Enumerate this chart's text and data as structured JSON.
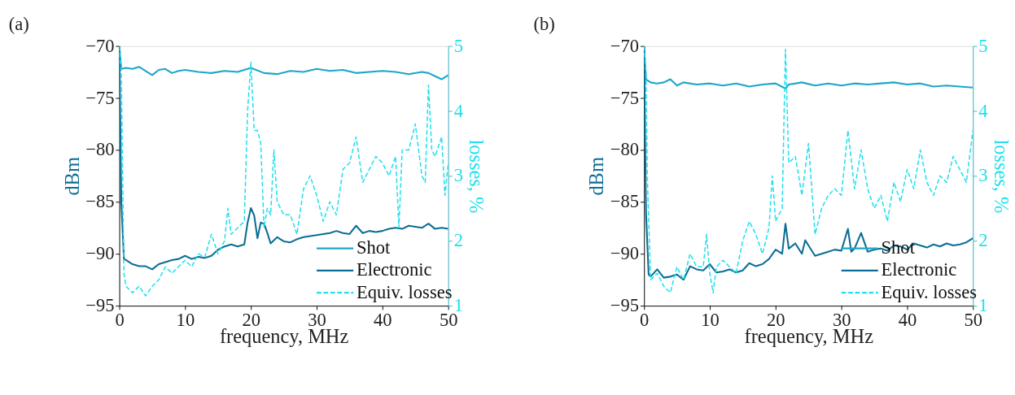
{
  "chart_data": [
    {
      "type": "line",
      "title": "(a)",
      "xlabel": "frequency, MHz",
      "ylabel": "dBm",
      "y2label": "losses, %",
      "xlim": [
        0,
        50
      ],
      "xticks": [
        0,
        10,
        20,
        30,
        40,
        50
      ],
      "ylim": [
        -95,
        -70
      ],
      "yticks": [
        -95,
        -90,
        -85,
        -80,
        -75,
        -70
      ],
      "y2lim": [
        1,
        5
      ],
      "y2ticks": [
        1,
        2,
        3,
        4,
        5
      ],
      "legend": "bottom right",
      "grid": false,
      "series": [
        {
          "name": "Shot",
          "color": "#1aa7c9",
          "line_style": "solid",
          "x": [
            0,
            0.3,
            1,
            2,
            3,
            4,
            5,
            6,
            7,
            8,
            9,
            10,
            12,
            14,
            16,
            18,
            20,
            22,
            24,
            26,
            28,
            30,
            32,
            34,
            36,
            38,
            40,
            42,
            44,
            46,
            47,
            48,
            49,
            50
          ],
          "values": [
            -70,
            -72.2,
            -72.1,
            -72.2,
            -72.0,
            -72.4,
            -72.8,
            -72.3,
            -72.2,
            -72.6,
            -72.4,
            -72.3,
            -72.5,
            -72.6,
            -72.4,
            -72.5,
            -72.1,
            -72.6,
            -72.7,
            -72.4,
            -72.5,
            -72.2,
            -72.4,
            -72.3,
            -72.6,
            -72.5,
            -72.4,
            -72.5,
            -72.7,
            -72.5,
            -72.6,
            -72.9,
            -73.2,
            -72.8
          ]
        },
        {
          "name": "Electronic",
          "color": "#0b6e94",
          "line_style": "solid",
          "x": [
            0,
            0.3,
            0.7,
            1,
            2,
            3,
            4,
            5,
            6,
            7,
            8,
            9,
            10,
            11,
            12,
            13,
            14,
            15,
            16,
            17,
            18,
            19,
            19.5,
            20,
            20.5,
            21,
            21.5,
            22,
            22.5,
            23,
            24,
            25,
            26,
            27,
            28,
            29,
            30,
            31,
            32,
            33,
            34,
            35,
            36,
            37,
            38,
            39,
            40,
            41,
            42,
            43,
            44,
            45,
            46,
            47,
            48,
            49,
            50
          ],
          "values": [
            -70,
            -85,
            -90.5,
            -90.6,
            -91,
            -91.2,
            -91.2,
            -91.5,
            -91,
            -90.8,
            -90.6,
            -90.5,
            -90.2,
            -90.5,
            -90.3,
            -90.4,
            -90.2,
            -89.6,
            -89.3,
            -89.1,
            -89.3,
            -89.1,
            -87,
            -85.6,
            -86.3,
            -88.5,
            -87,
            -87.1,
            -88,
            -89,
            -88.4,
            -88.8,
            -88.9,
            -88.6,
            -88.4,
            -88.3,
            -88.2,
            -88.1,
            -88,
            -87.8,
            -88,
            -88.1,
            -87.3,
            -88,
            -87.8,
            -87.9,
            -87.8,
            -87.6,
            -87.5,
            -87.6,
            -87.3,
            -87.4,
            -87.5,
            -87.1,
            -87.6,
            -87.5,
            -87.6
          ]
        },
        {
          "name": "Equiv. losses",
          "color": "#1ee0ee",
          "line_style": "dashed",
          "axis": "y2",
          "x": [
            0,
            0.3,
            0.7,
            1,
            2,
            3,
            4,
            5,
            6,
            7,
            8,
            9,
            10,
            11,
            12,
            13,
            14,
            15,
            16,
            16.5,
            17,
            18,
            19,
            19.5,
            20,
            20.5,
            21,
            21.5,
            22,
            22.5,
            23,
            23.5,
            24,
            25,
            26,
            27,
            28,
            29,
            30,
            31,
            32,
            33,
            34,
            35,
            36,
            37,
            38,
            39,
            40,
            41,
            42,
            42.5,
            43,
            44,
            45,
            46,
            46.5,
            47,
            47.5,
            48,
            49,
            49.5,
            50
          ],
          "values": [
            5,
            4.6,
            1.5,
            1.3,
            1.2,
            1.3,
            1.15,
            1.3,
            1.4,
            1.6,
            1.5,
            1.6,
            1.7,
            1.6,
            1.8,
            1.75,
            2.1,
            1.8,
            2.0,
            2.5,
            2.1,
            2.2,
            2.3,
            4.0,
            4.75,
            3.7,
            3.7,
            3.5,
            2.2,
            2.5,
            2.4,
            3.4,
            2.6,
            2.4,
            2.4,
            2.1,
            2.8,
            3.0,
            2.7,
            2.3,
            2.6,
            2.4,
            3.1,
            3.2,
            3.6,
            2.9,
            3.1,
            3.3,
            3.2,
            3.0,
            3.3,
            2.2,
            3.4,
            3.4,
            3.8,
            3.0,
            2.9,
            4.4,
            3.4,
            3.3,
            3.6,
            2.7,
            3.2
          ]
        }
      ]
    },
    {
      "type": "line",
      "title": "(b)",
      "xlabel": "frequency, MHz",
      "ylabel": "dBm",
      "y2label": "losses, %",
      "xlim": [
        0,
        50
      ],
      "xticks": [
        0,
        10,
        20,
        30,
        40,
        50
      ],
      "ylim": [
        -95,
        -70
      ],
      "yticks": [
        -95,
        -90,
        -85,
        -80,
        -75,
        -70
      ],
      "y2lim": [
        1,
        5
      ],
      "y2ticks": [
        1,
        2,
        3,
        4,
        5
      ],
      "legend": "bottom right",
      "grid": false,
      "series": [
        {
          "name": "Shot",
          "color": "#1aa7c9",
          "line_style": "solid",
          "x": [
            0,
            0.3,
            1,
            2,
            3,
            4,
            5,
            6,
            8,
            10,
            12,
            14,
            16,
            18,
            20,
            21.5,
            22,
            24,
            26,
            28,
            30,
            32,
            34,
            36,
            38,
            40,
            42,
            44,
            46,
            48,
            50
          ],
          "values": [
            -70,
            -73.2,
            -73.5,
            -73.6,
            -73.5,
            -73.2,
            -73.8,
            -73.5,
            -73.7,
            -73.6,
            -73.8,
            -73.6,
            -73.9,
            -73.7,
            -73.6,
            -74.1,
            -73.7,
            -73.5,
            -73.8,
            -73.6,
            -73.8,
            -73.6,
            -73.7,
            -73.6,
            -73.5,
            -73.7,
            -73.6,
            -73.9,
            -73.8,
            -73.9,
            -74.0
          ]
        },
        {
          "name": "Electronic",
          "color": "#0b6e94",
          "line_style": "solid",
          "x": [
            0,
            0.3,
            0.7,
            1,
            2,
            3,
            4,
            5,
            6,
            7,
            8,
            9,
            10,
            11,
            12,
            13,
            14,
            15,
            16,
            17,
            18,
            19,
            20,
            21,
            21.5,
            22,
            23,
            24,
            24.5,
            25,
            26,
            27,
            28,
            29,
            30,
            31,
            31.5,
            32,
            33,
            34,
            35,
            36,
            37,
            38,
            39,
            40,
            41,
            42,
            43,
            44,
            45,
            46,
            47,
            48,
            49,
            50
          ],
          "values": [
            -70,
            -86,
            -92,
            -92.2,
            -91.5,
            -92.3,
            -92.2,
            -92,
            -92.5,
            -91.2,
            -91.5,
            -91.6,
            -91,
            -91.8,
            -91.7,
            -91.5,
            -91.8,
            -91.6,
            -90.9,
            -91.2,
            -91,
            -90.5,
            -89.6,
            -90,
            -87.1,
            -89.5,
            -89,
            -90,
            -88.7,
            -89.2,
            -90.2,
            -90,
            -89.8,
            -89.6,
            -89.7,
            -87.6,
            -89.8,
            -89.5,
            -88,
            -89.8,
            -89.6,
            -89.5,
            -89.7,
            -89.2,
            -89.3,
            -89.6,
            -89.0,
            -89.2,
            -89.4,
            -89.1,
            -89.3,
            -89.0,
            -89.2,
            -89.1,
            -88.9,
            -88.5
          ]
        },
        {
          "name": "Equiv. losses",
          "color": "#1ee0ee",
          "line_style": "dashed",
          "axis": "y2",
          "x": [
            0,
            0.3,
            0.5,
            1,
            2,
            3,
            4,
            5,
            6,
            7,
            8,
            9,
            9.5,
            10,
            10.5,
            11,
            12,
            13,
            14,
            15,
            16,
            17,
            18,
            19,
            19.5,
            20,
            21,
            21.5,
            22,
            23,
            24,
            25,
            26,
            27,
            28,
            29,
            30,
            31,
            32,
            33,
            34,
            35,
            36,
            37,
            38,
            39,
            40,
            41,
            42,
            43,
            44,
            45,
            46,
            47,
            48,
            49,
            50
          ],
          "values": [
            5,
            4.6,
            3.0,
            1.4,
            1.5,
            1.3,
            1.2,
            1.6,
            1.4,
            1.8,
            1.6,
            1.6,
            2.1,
            1.5,
            1.2,
            1.6,
            1.7,
            1.6,
            1.5,
            2.0,
            2.3,
            2.1,
            1.8,
            2.2,
            3.0,
            2.3,
            2.5,
            4.95,
            3.2,
            3.3,
            2.7,
            3.5,
            2.1,
            2.5,
            2.7,
            2.8,
            2.7,
            3.7,
            2.8,
            3.4,
            2.8,
            2.5,
            2.7,
            2.3,
            2.9,
            2.6,
            3.1,
            2.8,
            3.4,
            2.9,
            2.7,
            3.0,
            2.9,
            3.3,
            3.1,
            2.9,
            3.7
          ]
        }
      ]
    }
  ]
}
